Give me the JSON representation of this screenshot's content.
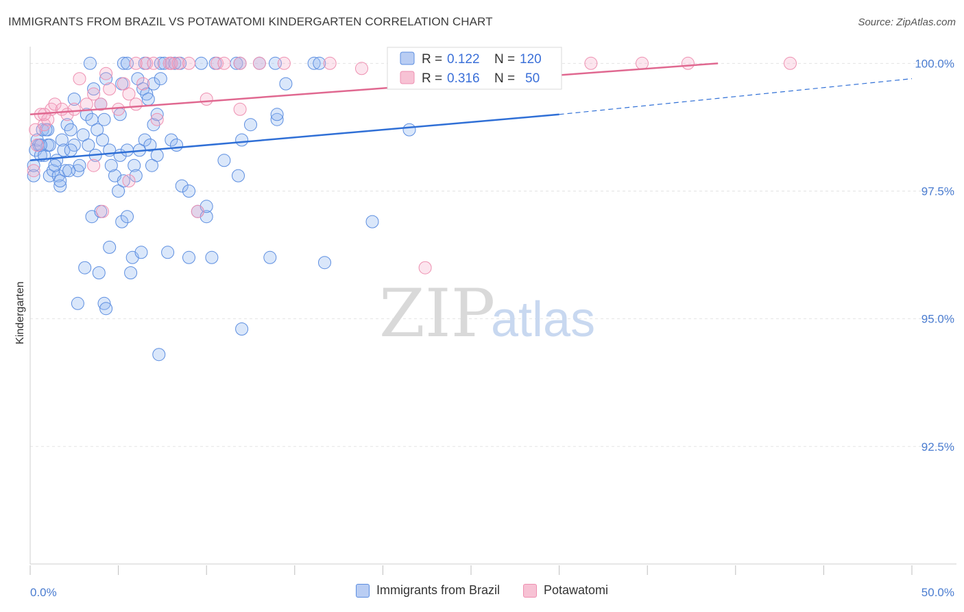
{
  "title": "IMMIGRANTS FROM BRAZIL VS POTAWATOMI KINDERGARTEN CORRELATION CHART",
  "source": "Source: ZipAtlas.com",
  "watermark": {
    "zip": "ZIP",
    "atlas": "atlas"
  },
  "colors": {
    "blue": "#5b8de0",
    "pink": "#ee8fb0",
    "blue_line": "#2f6fd6",
    "pink_line": "#e06890",
    "tick": "#4a7cd0"
  },
  "legend": {
    "rows": [
      {
        "r_label": "R =",
        "r_value": "0.122",
        "n_label": "N =",
        "n_value": "120"
      },
      {
        "r_label": "R =",
        "r_value": "0.316",
        "n_label": "N =",
        "n_value": "50"
      }
    ]
  },
  "bottom_legend": {
    "series1": "Immigrants from Brazil",
    "series2": "Potawatomi"
  },
  "chart_data": {
    "type": "scatter",
    "title": "IMMIGRANTS FROM BRAZIL VS POTAWATOMI KINDERGARTEN CORRELATION CHART",
    "xlabel": "",
    "ylabel": "Kindergarten",
    "xlim": [
      0,
      50
    ],
    "ylim": [
      90.2,
      100.3
    ],
    "x_tick_labels": [
      "0.0%",
      "50.0%"
    ],
    "y_ticks": [
      92.5,
      95.0,
      97.5,
      100.0
    ],
    "y_tick_labels": [
      "92.5%",
      "95.0%",
      "97.5%",
      "100.0%"
    ],
    "grid": true,
    "legend_position": "top-center",
    "series": [
      {
        "name": "Immigrants from Brazil",
        "color": "#5b8de0",
        "r": 0.122,
        "n": 120,
        "trend": {
          "x": [
            0,
            30,
            50
          ],
          "y": [
            98.1,
            99.0,
            99.7
          ],
          "solid_until_x": 30
        },
        "points": [
          [
            0.2,
            97.8
          ],
          [
            0.2,
            98.0
          ],
          [
            0.3,
            98.3
          ],
          [
            0.4,
            98.5
          ],
          [
            0.5,
            98.4
          ],
          [
            0.6,
            98.2
          ],
          [
            0.7,
            98.7
          ],
          [
            0.8,
            98.2
          ],
          [
            1.0,
            98.7
          ],
          [
            1.0,
            98.4
          ],
          [
            1.1,
            97.8
          ],
          [
            1.3,
            97.9
          ],
          [
            1.5,
            98.1
          ],
          [
            1.6,
            97.8
          ],
          [
            1.7,
            97.6
          ],
          [
            1.8,
            98.5
          ],
          [
            1.9,
            98.3
          ],
          [
            2.0,
            97.9
          ],
          [
            2.1,
            98.8
          ],
          [
            2.3,
            98.7
          ],
          [
            2.5,
            98.4
          ],
          [
            2.7,
            97.9
          ],
          [
            3.0,
            98.6
          ],
          [
            3.2,
            99.0
          ],
          [
            3.5,
            98.9
          ],
          [
            3.7,
            98.2
          ],
          [
            4.0,
            99.2
          ],
          [
            4.2,
            98.9
          ],
          [
            4.5,
            98.3
          ],
          [
            4.8,
            97.8
          ],
          [
            5.1,
            98.2
          ],
          [
            5.3,
            97.7
          ],
          [
            5.5,
            98.3
          ],
          [
            5.9,
            98.0
          ],
          [
            6.0,
            97.8
          ],
          [
            6.5,
            98.5
          ],
          [
            6.8,
            98.4
          ],
          [
            7.0,
            98.8
          ],
          [
            7.2,
            98.2
          ],
          [
            8.0,
            98.5
          ],
          [
            8.6,
            97.6
          ],
          [
            9.0,
            97.5
          ],
          [
            9.5,
            97.1
          ],
          [
            10.0,
            97.0
          ],
          [
            11.0,
            98.1
          ],
          [
            11.8,
            97.8
          ],
          [
            12.0,
            98.5
          ],
          [
            12.5,
            98.8
          ],
          [
            14.0,
            98.9
          ],
          [
            14.5,
            99.6
          ],
          [
            3.5,
            97.0
          ],
          [
            4.0,
            97.1
          ],
          [
            4.5,
            96.4
          ],
          [
            5.0,
            97.5
          ],
          [
            5.2,
            96.9
          ],
          [
            5.5,
            97.0
          ],
          [
            5.8,
            96.2
          ],
          [
            6.3,
            96.3
          ],
          [
            7.8,
            96.3
          ],
          [
            9.0,
            96.2
          ],
          [
            3.1,
            96.0
          ],
          [
            3.9,
            95.9
          ],
          [
            5.7,
            95.9
          ],
          [
            2.7,
            95.3
          ],
          [
            4.2,
            95.3
          ],
          [
            4.3,
            95.2
          ],
          [
            13.6,
            96.2
          ],
          [
            16.7,
            96.1
          ],
          [
            19.4,
            96.9
          ],
          [
            12.0,
            94.8
          ],
          [
            7.3,
            94.3
          ],
          [
            10.3,
            96.2
          ],
          [
            14.0,
            99.0
          ],
          [
            21.5,
            98.7
          ],
          [
            2.5,
            99.3
          ],
          [
            3.6,
            99.5
          ],
          [
            4.3,
            99.7
          ],
          [
            5.2,
            99.6
          ],
          [
            6.1,
            99.7
          ],
          [
            6.4,
            99.5
          ],
          [
            6.6,
            99.4
          ],
          [
            6.7,
            99.3
          ],
          [
            7.0,
            99.6
          ],
          [
            7.4,
            99.7
          ],
          [
            5.3,
            100.0
          ],
          [
            5.5,
            100.0
          ],
          [
            3.4,
            100.0
          ],
          [
            6.5,
            100.0
          ],
          [
            7.4,
            100.0
          ],
          [
            7.6,
            100.0
          ],
          [
            8.0,
            100.0
          ],
          [
            8.2,
            100.0
          ],
          [
            8.5,
            100.0
          ],
          [
            9.7,
            100.0
          ],
          [
            10.5,
            100.0
          ],
          [
            11.7,
            100.0
          ],
          [
            11.9,
            100.0
          ],
          [
            13.0,
            100.0
          ],
          [
            13.9,
            100.0
          ],
          [
            16.1,
            100.0
          ],
          [
            16.4,
            100.0
          ],
          [
            27.0,
            100.0
          ],
          [
            1.1,
            98.4
          ],
          [
            2.3,
            98.3
          ],
          [
            3.3,
            98.4
          ],
          [
            4.1,
            98.5
          ],
          [
            0.9,
            98.7
          ],
          [
            1.7,
            97.7
          ],
          [
            0.6,
            98.4
          ],
          [
            1.4,
            98.0
          ],
          [
            2.8,
            98.0
          ],
          [
            4.6,
            98.0
          ],
          [
            6.2,
            98.3
          ],
          [
            8.3,
            98.4
          ],
          [
            7.2,
            99.0
          ],
          [
            5.1,
            99.0
          ],
          [
            3.8,
            98.7
          ],
          [
            10.0,
            97.2
          ],
          [
            6.9,
            98.0
          ],
          [
            2.2,
            97.9
          ]
        ]
      },
      {
        "name": "Potawatomi",
        "color": "#ee8fb0",
        "r": 0.316,
        "n": 50,
        "trend": {
          "x": [
            0,
            39
          ],
          "y": [
            99.0,
            100.0
          ]
        },
        "points": [
          [
            0.2,
            97.9
          ],
          [
            0.3,
            98.7
          ],
          [
            0.4,
            98.4
          ],
          [
            0.6,
            99.0
          ],
          [
            0.8,
            98.8
          ],
          [
            1.0,
            98.9
          ],
          [
            1.2,
            99.1
          ],
          [
            1.4,
            99.2
          ],
          [
            1.8,
            99.1
          ],
          [
            2.1,
            99.0
          ],
          [
            2.5,
            99.1
          ],
          [
            2.8,
            99.7
          ],
          [
            3.2,
            99.2
          ],
          [
            3.6,
            99.4
          ],
          [
            4.0,
            99.2
          ],
          [
            4.3,
            99.8
          ],
          [
            4.5,
            99.5
          ],
          [
            5.0,
            99.1
          ],
          [
            5.3,
            99.6
          ],
          [
            5.6,
            99.4
          ],
          [
            6.0,
            99.2
          ],
          [
            6.4,
            99.6
          ],
          [
            7.2,
            98.9
          ],
          [
            10.0,
            99.3
          ],
          [
            11.9,
            99.1
          ],
          [
            3.6,
            98.0
          ],
          [
            4.1,
            97.1
          ],
          [
            5.6,
            97.7
          ],
          [
            9.5,
            97.1
          ],
          [
            22.4,
            96.0
          ],
          [
            6.0,
            100.0
          ],
          [
            6.6,
            100.0
          ],
          [
            7.0,
            100.0
          ],
          [
            7.9,
            100.0
          ],
          [
            8.0,
            100.0
          ],
          [
            8.4,
            100.0
          ],
          [
            9.0,
            100.0
          ],
          [
            10.6,
            100.0
          ],
          [
            11.0,
            100.0
          ],
          [
            11.9,
            100.0
          ],
          [
            13.0,
            100.0
          ],
          [
            14.4,
            100.0
          ],
          [
            17.0,
            100.0
          ],
          [
            18.8,
            99.9
          ],
          [
            24.8,
            100.0
          ],
          [
            31.8,
            100.0
          ],
          [
            34.7,
            100.0
          ],
          [
            37.3,
            100.0
          ],
          [
            43.1,
            100.0
          ],
          [
            0.8,
            99.0
          ]
        ]
      }
    ]
  }
}
